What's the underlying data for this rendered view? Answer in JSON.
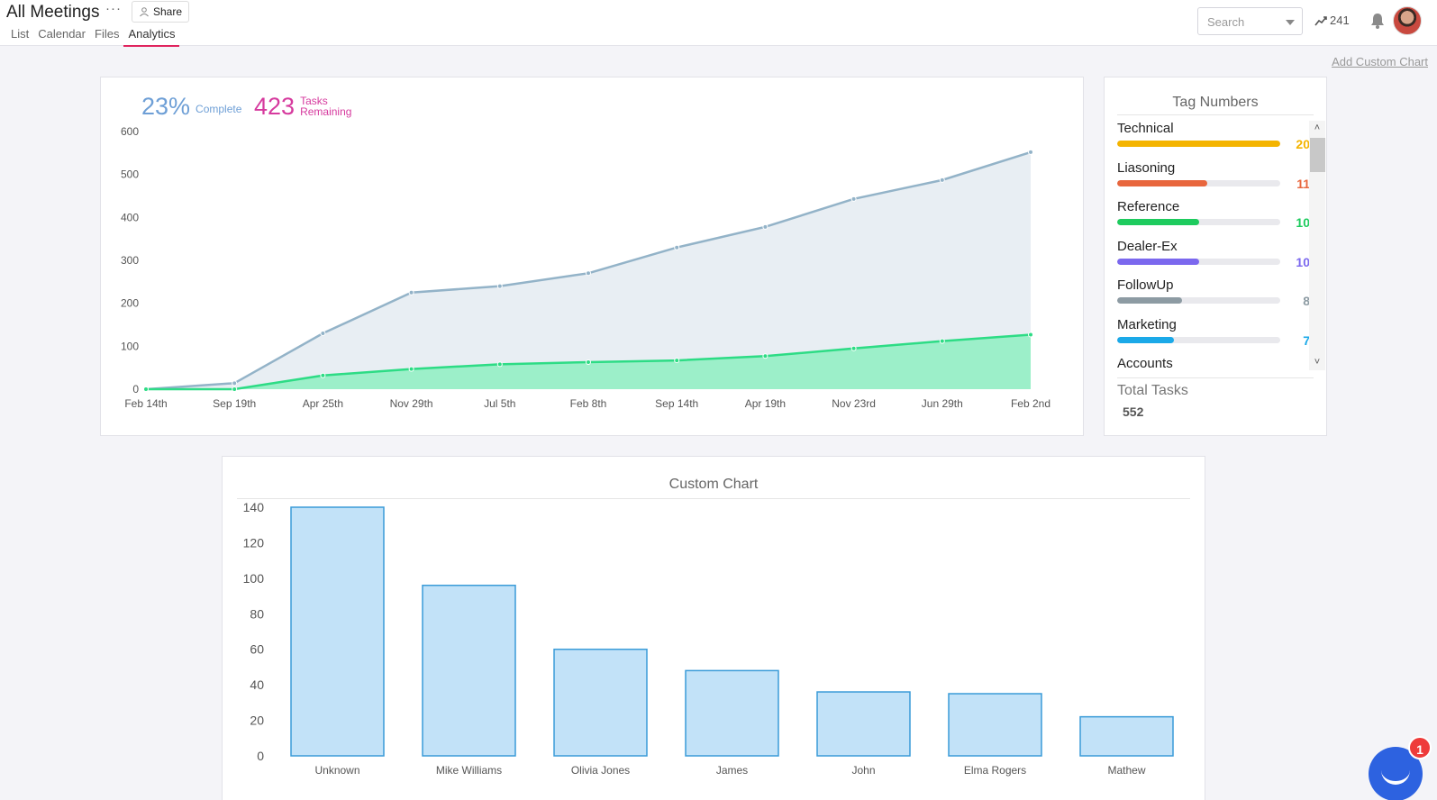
{
  "header": {
    "title": "All Meetings",
    "more_label": "···",
    "share_label": "Share",
    "tabs": [
      {
        "label": "List"
      },
      {
        "label": "Calendar"
      },
      {
        "label": "Files"
      },
      {
        "label": "Analytics"
      }
    ],
    "search_placeholder": "Search",
    "trend_count": "241",
    "add_custom_chart": "Add Custom Chart"
  },
  "summary": {
    "complete_value": "23%",
    "complete_label": "Complete",
    "remaining_value": "423",
    "remaining_label_1": "Tasks",
    "remaining_label_2": "Remaining"
  },
  "tags": {
    "title": "Tag Numbers",
    "items": [
      {
        "name": "Technical",
        "count": "20",
        "value": 20,
        "color": "#f4b400"
      },
      {
        "name": "Liasoning",
        "count": "11",
        "value": 11,
        "color": "#e8663d"
      },
      {
        "name": "Reference",
        "count": "10",
        "value": 10,
        "color": "#1ecb5e"
      },
      {
        "name": "Dealer-Ex",
        "count": "10",
        "value": 10,
        "color": "#7b68ee"
      },
      {
        "name": "FollowUp",
        "count": "8",
        "value": 8,
        "color": "#8d9ba3"
      },
      {
        "name": "Marketing",
        "count": "7",
        "value": 7,
        "color": "#1ba9e8"
      },
      {
        "name": "Accounts",
        "count": "",
        "value": 0,
        "color": "#999999"
      }
    ],
    "max": 20,
    "total_label": "Total Tasks",
    "total_value": "552"
  },
  "custom_chart": {
    "title": "Custom Chart"
  },
  "chat": {
    "badge": "1"
  },
  "chart_data": [
    {
      "type": "area",
      "categories": [
        "Feb 14th",
        "Sep 19th",
        "Apr 25th",
        "Nov 29th",
        "Jul 5th",
        "Feb 8th",
        "Sep 14th",
        "Apr 19th",
        "Nov 23rd",
        "Jun 29th",
        "Feb 2nd"
      ],
      "series": [
        {
          "values": [
            0,
            14,
            130,
            225,
            240,
            270,
            330,
            378,
            443,
            487,
            552
          ],
          "color": "#93b3c8",
          "fill": "#e8eef3"
        },
        {
          "values": [
            0,
            0,
            32,
            47,
            58,
            63,
            67,
            77,
            95,
            112,
            127
          ],
          "color": "#2ddc85",
          "fill": "#9cefc9"
        }
      ],
      "ylim": [
        0,
        600
      ],
      "yticks": [
        0,
        100,
        200,
        300,
        400,
        500,
        600
      ],
      "grid": false,
      "title": "",
      "xlabel": "",
      "ylabel": ""
    },
    {
      "type": "bar",
      "title": "Custom Chart",
      "categories": [
        "Unknown",
        "Mike Williams",
        "Olivia Jones",
        "James",
        "John",
        "Elma Rogers",
        "Mathew"
      ],
      "values": [
        140,
        96,
        60,
        48,
        36,
        35,
        22
      ],
      "ylim": [
        0,
        140
      ],
      "yticks": [
        0,
        20,
        40,
        60,
        80,
        100,
        120,
        140
      ],
      "grid": false,
      "color": "#c2e2f8",
      "edge_color": "#3a9bd8",
      "xlabel": "",
      "ylabel": ""
    }
  ]
}
